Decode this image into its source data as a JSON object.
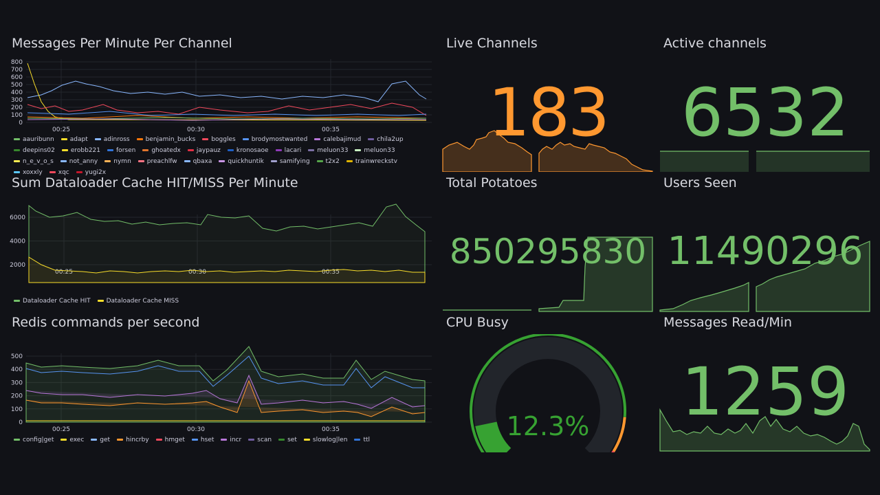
{
  "colors": {
    "background": "#111217",
    "green": "#73bf69",
    "orange": "#ff9830",
    "gauge_green": "#37a232",
    "gauge_red": "#f2495c"
  },
  "messages_panel": {
    "title": "Messages Per Minute Per Channel",
    "legend": [
      {
        "name": "aauribunn",
        "color": "#73bf69"
      },
      {
        "name": "adapt",
        "color": "#fade2a"
      },
      {
        "name": "adinross",
        "color": "#8ab8ff"
      },
      {
        "name": "benjamin_bucks",
        "color": "#ff780a"
      },
      {
        "name": "boggles",
        "color": "#f2495c"
      },
      {
        "name": "brodymostwanted",
        "color": "#5794f2"
      },
      {
        "name": "calebajimud",
        "color": "#b877d9"
      },
      {
        "name": "chila2up",
        "color": "#705da0"
      },
      {
        "name": "deepins02",
        "color": "#37872d"
      },
      {
        "name": "erobb221",
        "color": "#fade2a"
      },
      {
        "name": "forsen",
        "color": "#3274d9"
      },
      {
        "name": "ghoatedx",
        "color": "#e0752d"
      },
      {
        "name": "jaypauz",
        "color": "#e02f44"
      },
      {
        "name": "kronosaoe",
        "color": "#1f60c4"
      },
      {
        "name": "lacari",
        "color": "#8f3bb8"
      },
      {
        "name": "meluon33",
        "color": "#7c6fa5"
      },
      {
        "name": "meluon33",
        "color": "#c8f2c2"
      },
      {
        "name": "n_e_v_o_s",
        "color": "#ffee52"
      },
      {
        "name": "not_anny",
        "color": "#8ab8ff"
      },
      {
        "name": "nymn",
        "color": "#ffb357"
      },
      {
        "name": "preachlfw",
        "color": "#ff7383"
      },
      {
        "name": "qbaxa",
        "color": "#8ab8ff"
      },
      {
        "name": "quickhuntik",
        "color": "#ca95e5"
      },
      {
        "name": "samifying",
        "color": "#a1a1ce"
      },
      {
        "name": "t2x2",
        "color": "#56a64b"
      },
      {
        "name": "trainwreckstv",
        "color": "#e0b400"
      },
      {
        "name": "xoxxly",
        "color": "#5ac8fa"
      },
      {
        "name": "xqc",
        "color": "#f2495c"
      },
      {
        "name": "yugi2x",
        "color": "#c4162a"
      }
    ],
    "yticks": [
      "800",
      "700",
      "600",
      "500",
      "400",
      "300",
      "200",
      "100",
      "0"
    ],
    "xticks": [
      "00:25",
      "00:30",
      "00:35"
    ]
  },
  "cache_panel": {
    "title": "Sum Dataloader Cache HIT/MISS Per Minute",
    "legend": [
      {
        "name": "Dataloader Cache HIT",
        "color": "#73bf69"
      },
      {
        "name": "Dataloader Cache MISS",
        "color": "#fade2a"
      }
    ],
    "yticks": [
      "6000",
      "4000",
      "2000"
    ],
    "xticks": [
      "00:25",
      "00:30",
      "00:35"
    ]
  },
  "redis_panel": {
    "title": "Redis commands per second",
    "legend": [
      {
        "name": "config|get",
        "color": "#73bf69"
      },
      {
        "name": "exec",
        "color": "#fade2a"
      },
      {
        "name": "get",
        "color": "#8ab8ff"
      },
      {
        "name": "hincrby",
        "color": "#ff9830"
      },
      {
        "name": "hmget",
        "color": "#f2495c"
      },
      {
        "name": "hset",
        "color": "#5794f2"
      },
      {
        "name": "incr",
        "color": "#b877d9"
      },
      {
        "name": "scan",
        "color": "#705da0"
      },
      {
        "name": "set",
        "color": "#37872d"
      },
      {
        "name": "slowlog|len",
        "color": "#fade2a"
      },
      {
        "name": "ttl",
        "color": "#3274d9"
      }
    ],
    "yticks": [
      "500",
      "400",
      "300",
      "200",
      "100",
      "0"
    ],
    "xticks": [
      "00:25",
      "00:30",
      "00:35"
    ]
  },
  "live_channels": {
    "title": "Live Channels",
    "value": "183",
    "color": "#ff9830"
  },
  "active_channels": {
    "title": "Active channels",
    "value": "6532",
    "color": "#73bf69"
  },
  "total_potatoes": {
    "title": "Total Potatoes",
    "value": "850295830",
    "color": "#73bf69"
  },
  "users_seen": {
    "title": "Users Seen",
    "value": "11490296",
    "color": "#73bf69"
  },
  "cpu_busy": {
    "title": "CPU Busy",
    "value": "12.3%",
    "fraction": 0.123
  },
  "messages_read": {
    "title": "Messages Read/Min",
    "value": "1259",
    "color": "#73bf69"
  }
}
